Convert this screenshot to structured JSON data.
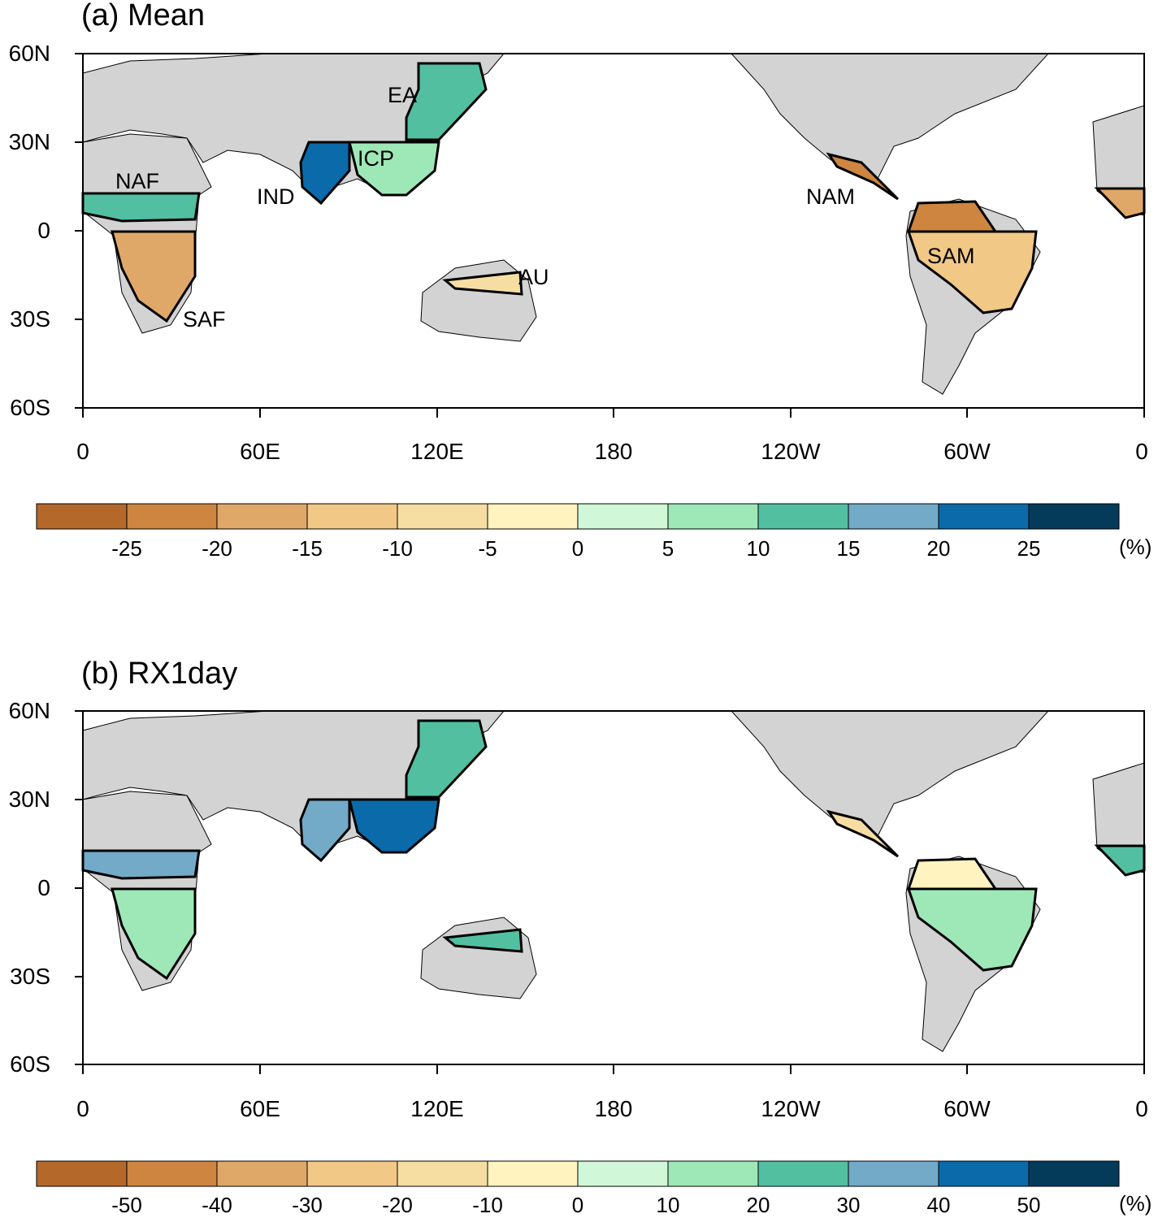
{
  "panels": [
    {
      "id": "a",
      "title": "(a) Mean",
      "lat_labels": [
        "60N",
        "30N",
        "0",
        "30S",
        "60S"
      ],
      "lon_labels": [
        "0",
        "60E",
        "120E",
        "180",
        "120W",
        "60W",
        "0"
      ],
      "regions": [
        "EA",
        "ICP",
        "NAF",
        "IND",
        "NAM",
        "SAM",
        "AU",
        "SAF"
      ],
      "colorbar": {
        "ticks": [
          "-25",
          "-20",
          "-15",
          "-10",
          "-5",
          "0",
          "5",
          "10",
          "15",
          "20",
          "25"
        ],
        "unit": "(%)"
      }
    },
    {
      "id": "b",
      "title": "(b) RX1day",
      "lat_labels": [
        "60N",
        "30N",
        "0",
        "30S",
        "60S"
      ],
      "lon_labels": [
        "0",
        "60E",
        "120E",
        "180",
        "120W",
        "60W",
        "0"
      ],
      "colorbar": {
        "ticks": [
          "-50",
          "-40",
          "-30",
          "-20",
          "-10",
          "0",
          "10",
          "20",
          "30",
          "40",
          "50"
        ],
        "unit": "(%)"
      }
    }
  ],
  "colors": {
    "land": "#d3d3d3",
    "ocean": "#ffffff",
    "palette": [
      "#b4692b",
      "#cd853f",
      "#e0a868",
      "#f1c886",
      "#f6dea3",
      "#fff3c0",
      "#d0f8d8",
      "#9ee8b8",
      "#52bfa1",
      "#72aac8",
      "#0a6aaa",
      "#043a5a"
    ]
  }
}
